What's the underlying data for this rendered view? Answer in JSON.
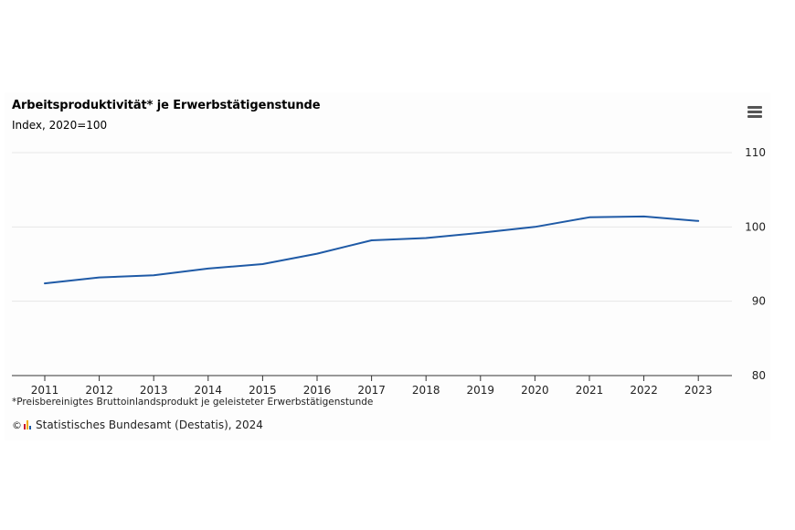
{
  "chart": {
    "title": "Arbeitsproduktivität* je Erwerbstätigenstunde",
    "subtitle": "Index, 2020=100",
    "footnote": "*Preisbereinigtes Bruttoinlandsprodukt je geleisteter Erwerbstätigenstunde",
    "source": "Statistisches Bundesamt (Destatis), 2024",
    "copyright_symbol": "©",
    "menu_icon": "hamburger-menu-icon",
    "logo_icon": "destatis-logo-icon"
  },
  "colors": {
    "line": "#1f5aa6",
    "grid": "#e6e6e6",
    "axis": "#333333",
    "logo_bars": [
      "#c8102e",
      "#f2a900",
      "#1f5aa6"
    ]
  },
  "chart_data": {
    "type": "line",
    "title": "Arbeitsproduktivität* je Erwerbstätigenstunde",
    "subtitle": "Index, 2020=100",
    "xlabel": "",
    "ylabel": "",
    "y_axis_position": "right",
    "grid": true,
    "legend": "none",
    "ylim": [
      80,
      110
    ],
    "yticks": [
      80,
      90,
      100,
      110
    ],
    "categories": [
      "2011",
      "2012",
      "2013",
      "2014",
      "2015",
      "2016",
      "2017",
      "2018",
      "2019",
      "2020",
      "2021",
      "2022",
      "2023"
    ],
    "series": [
      {
        "values": [
          92.4,
          93.2,
          93.5,
          94.4,
          95.0,
          96.4,
          98.2,
          98.5,
          99.2,
          100.0,
          101.3,
          101.4,
          100.8
        ]
      }
    ]
  }
}
